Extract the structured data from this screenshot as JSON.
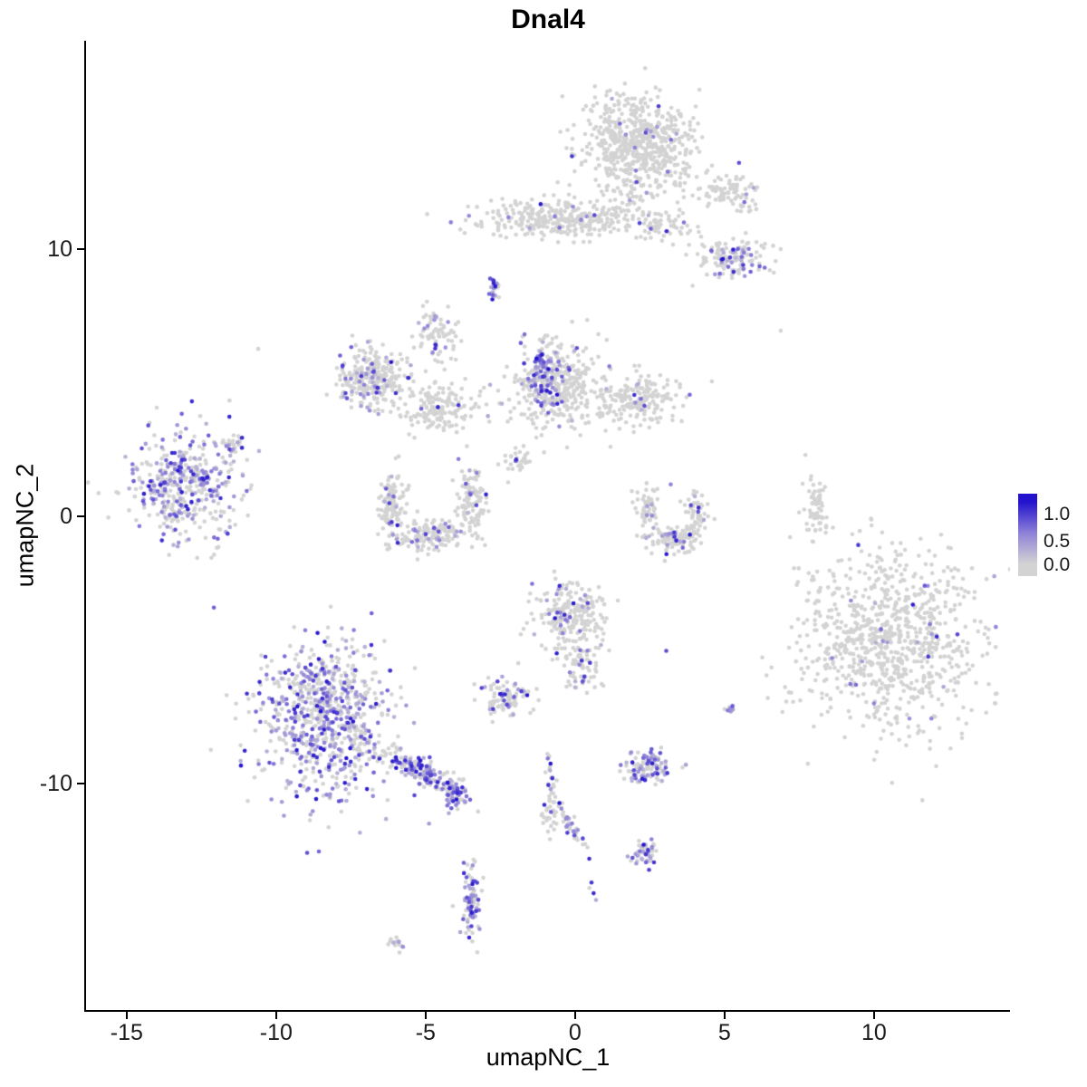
{
  "title": "Dnal4",
  "chart_data": {
    "type": "scatter",
    "title": "Dnal4",
    "xlabel": "umapNC_1",
    "ylabel": "umapNC_2",
    "xlim": [
      -16.36,
      14.55
    ],
    "ylim": [
      -18.47,
      17.8
    ],
    "x_ticks": [
      -15,
      -10,
      -5,
      0,
      5,
      10
    ],
    "y_ticks": [
      -10,
      0,
      10
    ],
    "grid": false,
    "point_radius": 2.3,
    "colors": {
      "low": "#d3d3d3",
      "mid": "#8f82d8",
      "high": "#2313cd",
      "axis": "#000000",
      "background": "#ffffff"
    },
    "legend": {
      "position": "right",
      "labels": [
        "1.0",
        "0.5",
        "0.0"
      ]
    },
    "clusters": [
      {
        "name": "top-main",
        "cx": 2.1,
        "cy": 13.9,
        "sx": 0.95,
        "sy": 0.9,
        "rot": 0,
        "n": 620,
        "expr": 0.02
      },
      {
        "name": "top-tail",
        "cx": 1.97,
        "cy": 12.0,
        "sx": 0.3,
        "sy": 0.45,
        "rot": 0,
        "n": 35,
        "expr": 0.03
      },
      {
        "name": "top-arm-right",
        "cx": 5.15,
        "cy": 12.2,
        "sx": 0.6,
        "sy": 0.35,
        "rot": -0.3,
        "n": 90,
        "expr": 0.05
      },
      {
        "name": "north-band",
        "cx": -0.61,
        "cy": 11.12,
        "sx": 1.45,
        "sy": 0.34,
        "rot": 0,
        "n": 320,
        "expr": 0.02
      },
      {
        "name": "band-trail",
        "cx": 3.03,
        "cy": 10.85,
        "sx": 0.5,
        "sy": 0.3,
        "rot": 0,
        "n": 50,
        "expr": 0.05
      },
      {
        "name": "ne-small",
        "cx": 5.3,
        "cy": 9.66,
        "sx": 0.6,
        "sy": 0.38,
        "rot": 0,
        "n": 130,
        "expr": 0.18
      },
      {
        "name": "tiny-north",
        "cx": -2.7,
        "cy": 8.58,
        "sx": 0.1,
        "sy": 0.25,
        "rot": 0,
        "n": 26,
        "expr": 0.55
      },
      {
        "name": "midwest-main",
        "cx": -6.79,
        "cy": 5.19,
        "sx": 0.6,
        "sy": 0.55,
        "rot": 0,
        "n": 280,
        "expr": 0.18
      },
      {
        "name": "midwest-lower",
        "cx": -4.48,
        "cy": 4.03,
        "sx": 0.64,
        "sy": 0.45,
        "rot": 0,
        "n": 160,
        "expr": 0.08
      },
      {
        "name": "midwest-arm",
        "cx": -4.67,
        "cy": 6.85,
        "sx": 0.36,
        "sy": 0.45,
        "rot": 0,
        "n": 80,
        "expr": 0.1
      },
      {
        "name": "center-main",
        "cx": -0.61,
        "cy": 4.92,
        "sx": 0.76,
        "sy": 0.85,
        "rot": 0,
        "n": 380,
        "expr": 0.08
      },
      {
        "name": "center-ridge",
        "cx": -1.06,
        "cy": 5.36,
        "sx": 0.23,
        "sy": 0.64,
        "rot": 0,
        "n": 100,
        "expr": 0.65
      },
      {
        "name": "center-east",
        "cx": 2.03,
        "cy": 4.34,
        "sx": 0.64,
        "sy": 0.47,
        "rot": 0,
        "n": 190,
        "expr": 0.06
      },
      {
        "name": "west-dense",
        "cx": -13.03,
        "cy": 1.12,
        "sx": 0.91,
        "sy": 0.99,
        "rot": 0,
        "n": 430,
        "expr": 0.45
      },
      {
        "name": "west-tail",
        "cx": -11.45,
        "cy": 2.71,
        "sx": 0.2,
        "sy": 0.17,
        "rot": 0,
        "n": 25,
        "expr": 0.3
      },
      {
        "name": "u-left",
        "cx": -6.12,
        "cy": 0.34,
        "sx": 0.23,
        "sy": 0.68,
        "rot": 0,
        "n": 120,
        "expr": 0.12
      },
      {
        "name": "u-bottom",
        "cx": -4.85,
        "cy": -0.68,
        "sx": 0.6,
        "sy": 0.3,
        "rot": 0,
        "n": 140,
        "expr": 0.15
      },
      {
        "name": "u-right",
        "cx": -3.45,
        "cy": 0.58,
        "sx": 0.24,
        "sy": 0.6,
        "rot": 0,
        "n": 110,
        "expr": 0.12
      },
      {
        "name": "crescent-left",
        "cx": 2.45,
        "cy": 0.34,
        "sx": 0.17,
        "sy": 0.47,
        "rot": 0,
        "n": 65,
        "expr": 0.1
      },
      {
        "name": "crescent-bottom",
        "cx": 3.24,
        "cy": -0.92,
        "sx": 0.42,
        "sy": 0.25,
        "rot": 0,
        "n": 90,
        "expr": 0.18
      },
      {
        "name": "crescent-right",
        "cx": 4.03,
        "cy": 0.1,
        "sx": 0.2,
        "sy": 0.42,
        "rot": 0,
        "n": 60,
        "expr": 0.1
      },
      {
        "name": "ne-strip",
        "cx": 8.03,
        "cy": 0.24,
        "sx": 0.18,
        "sy": 0.53,
        "rot": 0,
        "n": 65,
        "expr": 0
      },
      {
        "name": "east-big",
        "cx": 10.52,
        "cy": -4.61,
        "sx": 1.48,
        "sy": 1.59,
        "rot": 0,
        "n": 880,
        "expr": 0.02
      },
      {
        "name": "center-low",
        "cx": -0.15,
        "cy": -3.66,
        "sx": 0.58,
        "sy": 0.62,
        "rot": 0,
        "n": 230,
        "expr": 0.12
      },
      {
        "name": "center-low-ext",
        "cx": 0.09,
        "cy": -5.66,
        "sx": 0.4,
        "sy": 0.42,
        "rot": 0,
        "n": 70,
        "expr": 0.1
      },
      {
        "name": "small-westcenter",
        "cx": -2.3,
        "cy": -6.81,
        "sx": 0.39,
        "sy": 0.4,
        "rot": 0,
        "n": 90,
        "expr": 0.25
      },
      {
        "name": "southwest-dense",
        "cx": -8.33,
        "cy": -7.63,
        "sx": 1.06,
        "sy": 1.44,
        "rot": 0,
        "n": 780,
        "expr": 0.45
      },
      {
        "name": "southwest-arm",
        "cx": -5.24,
        "cy": -9.49,
        "sx": 0.65,
        "sy": 0.22,
        "rot": -0.55,
        "n": 170,
        "expr": 0.55
      },
      {
        "name": "southwest-arm-tip",
        "cx": -4.0,
        "cy": -10.37,
        "sx": 0.23,
        "sy": 0.31,
        "rot": 0,
        "n": 60,
        "expr": 0.6
      },
      {
        "name": "south-small",
        "cx": 2.48,
        "cy": -9.42,
        "sx": 0.38,
        "sy": 0.34,
        "rot": 0,
        "n": 110,
        "expr": 0.5
      },
      {
        "name": "south-strip",
        "cx": -0.85,
        "cy": -10.71,
        "sx": 0.11,
        "sy": 0.78,
        "rot": 0,
        "n": 48,
        "expr": 0.25
      },
      {
        "name": "south-diag",
        "cx": -0.15,
        "cy": -11.53,
        "sx": 0.45,
        "sy": 0.1,
        "rot": -1.15,
        "n": 45,
        "expr": 0.35
      },
      {
        "name": "south-small2",
        "cx": 2.36,
        "cy": -12.58,
        "sx": 0.2,
        "sy": 0.28,
        "rot": 0,
        "n": 45,
        "expr": 0.55
      },
      {
        "name": "south-vert",
        "cx": -3.48,
        "cy": -14.41,
        "sx": 0.18,
        "sy": 0.63,
        "rot": 0,
        "n": 90,
        "expr": 0.6
      },
      {
        "name": "south-tiny",
        "cx": -5.97,
        "cy": -15.97,
        "sx": 0.15,
        "sy": 0.14,
        "rot": 0,
        "n": 14,
        "expr": 0.4
      },
      {
        "name": "center-trail",
        "cx": -1.88,
        "cy": 2.1,
        "sx": 0.38,
        "sy": 0.34,
        "rot": -0.5,
        "n": 30,
        "expr": 0.03
      },
      {
        "name": "purple-pair",
        "cx": 5.18,
        "cy": -7.19,
        "sx": 0.1,
        "sy": 0.17,
        "rot": 0,
        "n": 10,
        "expr": 0.9
      }
    ],
    "singles": [
      {
        "x": -10.6,
        "y": 6.27,
        "v": 0
      },
      {
        "x": 6.88,
        "y": 6.95,
        "v": 0
      },
      {
        "x": 7.9,
        "y": 1.5,
        "v": 0
      },
      {
        "x": -2.55,
        "y": 8.2,
        "v": 0
      },
      {
        "x": -3.55,
        "y": 11.25,
        "v": 0.45
      },
      {
        "x": 0.2,
        "y": 11.1,
        "v": 0.5
      },
      {
        "x": 3.64,
        "y": 11.0,
        "v": 0.55
      },
      {
        "x": 1.5,
        "y": 14.7,
        "v": 0.6
      },
      {
        "x": 2.0,
        "y": 13.8,
        "v": 0.5
      },
      {
        "x": 3.1,
        "y": 12.9,
        "v": 0.55
      },
      {
        "x": 2.2,
        "y": 4.4,
        "v": 0.6
      },
      {
        "x": 3.05,
        "y": -5.03,
        "v": 0.75
      },
      {
        "x": 3.2,
        "y": 1.2,
        "v": 0.5
      },
      {
        "x": -0.82,
        "y": -9.25,
        "v": 1.0
      },
      {
        "x": 0.55,
        "y": -13.7,
        "v": 0.85
      },
      {
        "x": 0.62,
        "y": -14.1,
        "v": 0.9
      },
      {
        "x": 0.7,
        "y": -14.35,
        "v": 0.25
      },
      {
        "x": 0.48,
        "y": -13.9,
        "v": 0
      },
      {
        "x": 11.3,
        "y": -3.3,
        "v": 0.95
      },
      {
        "x": 12.1,
        "y": -4.5,
        "v": 0.9
      },
      {
        "x": 9.4,
        "y": -6.3,
        "v": 0.6
      },
      {
        "x": 10.0,
        "y": -7.0,
        "v": 0.5
      },
      {
        "x": 8.6,
        "y": -5.3,
        "v": 0.5
      },
      {
        "x": 11.8,
        "y": -2.6,
        "v": 0.45
      }
    ]
  }
}
